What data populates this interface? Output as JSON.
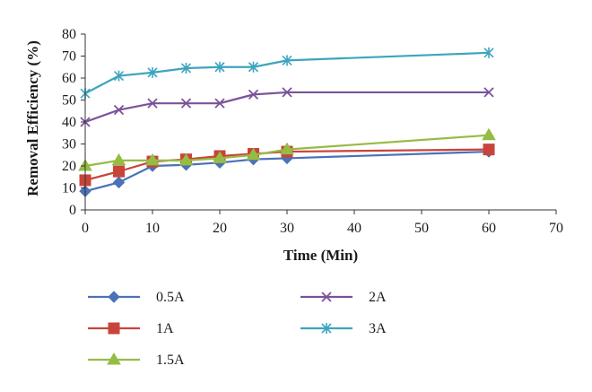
{
  "colors": {
    "0.5A": "#4a72b8",
    "1A": "#c8443a",
    "1.5A": "#96bc44",
    "2A": "#7a529a",
    "3A": "#3ea4be"
  },
  "chart_data": {
    "type": "line",
    "title": "",
    "xlabel": "Time (Min)",
    "ylabel": "Removal Efficiency (%)",
    "xlim": [
      0,
      70
    ],
    "ylim": [
      0,
      80
    ],
    "x_ticks": [
      "0",
      "10",
      "20",
      "30",
      "40",
      "50",
      "60",
      "70"
    ],
    "y_ticks": [
      "0",
      "10",
      "20",
      "30",
      "40",
      "50",
      "60",
      "70",
      "80"
    ],
    "grid": false,
    "legend_position": "bottom",
    "series": [
      {
        "name": "0.5A",
        "marker": "diamond",
        "color": "#4a72b8",
        "x": [
          0,
          5,
          10,
          15,
          20,
          25,
          30,
          60
        ],
        "y": [
          8.5,
          12.5,
          20,
          20.5,
          21.5,
          23,
          23.5,
          26.5
        ]
      },
      {
        "name": "1A",
        "marker": "square",
        "color": "#c8443a",
        "x": [
          0,
          5,
          10,
          15,
          20,
          25,
          30,
          60
        ],
        "y": [
          13.5,
          17.5,
          22,
          23,
          24.5,
          25.5,
          26.5,
          27.5
        ]
      },
      {
        "name": "1.5A",
        "marker": "triangle",
        "color": "#96bc44",
        "x": [
          0,
          5,
          10,
          15,
          20,
          25,
          30,
          60
        ],
        "y": [
          20,
          22.5,
          22.5,
          22.5,
          23.5,
          25,
          27.5,
          34
        ]
      },
      {
        "name": "2A",
        "marker": "x",
        "color": "#7a529a",
        "x": [
          0,
          5,
          10,
          15,
          20,
          25,
          30,
          60
        ],
        "y": [
          40,
          45.5,
          48.5,
          48.5,
          48.5,
          52.5,
          53.5,
          53.5
        ]
      },
      {
        "name": "3A",
        "marker": "asterisk",
        "color": "#3ea4be",
        "x": [
          0,
          5,
          10,
          15,
          20,
          25,
          30,
          60
        ],
        "y": [
          53,
          61,
          62.5,
          64.5,
          65,
          65,
          68,
          71.5
        ]
      }
    ]
  }
}
